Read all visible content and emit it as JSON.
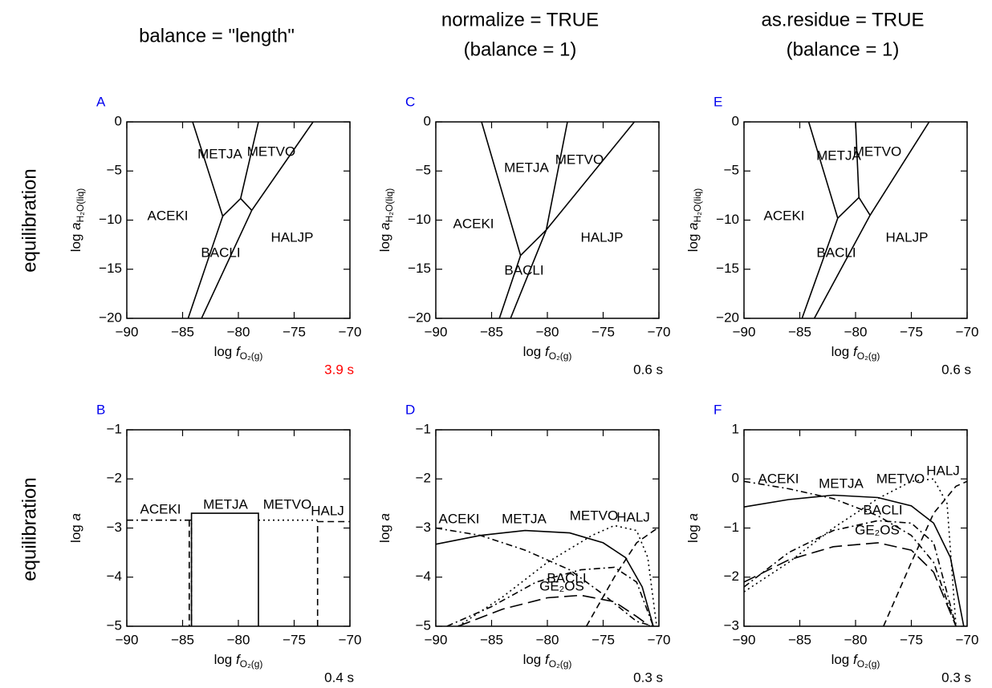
{
  "headers": [
    [
      "balance = \"length\""
    ],
    [
      "normalize = TRUE",
      "(balance = 1)"
    ],
    [
      "as.residue = TRUE",
      "(balance = 1)"
    ]
  ],
  "row_labels": [
    "equilibration",
    "equilibration"
  ],
  "chart_data": [
    {
      "type": "line",
      "letter": "A",
      "time": "3.9 s",
      "time_color": "#ff0000",
      "x_label": [
        "log ",
        "f",
        "O₂(g)"
      ],
      "y_label": [
        "log ",
        "a",
        "H₂O(liq)"
      ],
      "xlim": [
        -90,
        -70
      ],
      "ylim": [
        -20,
        0
      ],
      "xticks": [
        {
          "value": -90,
          "label": "−90"
        },
        {
          "value": -85,
          "label": "−85"
        },
        {
          "value": -80,
          "label": "−80"
        },
        {
          "value": -75,
          "label": "−75"
        },
        {
          "value": -70,
          "label": "−70"
        }
      ],
      "yticks": [
        0,
        {
          "value": -5,
          "label": "−5"
        },
        {
          "value": -10,
          "label": "−10"
        },
        {
          "value": -15,
          "label": "−15"
        },
        {
          "value": -20,
          "label": "−20"
        }
      ],
      "labels": [
        "ACEKI",
        "METJA",
        "METVO",
        "BACLI",
        "HALJP"
      ],
      "lines": [
        {
          "dash": "solid",
          "x": [
            -84.1,
            -81.4
          ],
          "y": [
            0,
            -9.6
          ]
        },
        {
          "dash": "solid",
          "x": [
            -81.4,
            -84.5
          ],
          "y": [
            -9.6,
            -20
          ]
        },
        {
          "dash": "solid",
          "x": [
            -81.4,
            -79.8
          ],
          "y": [
            -9.6,
            -7.8
          ]
        },
        {
          "dash": "solid",
          "x": [
            -78.2,
            -79.8
          ],
          "y": [
            0,
            -7.8
          ]
        },
        {
          "dash": "solid",
          "x": [
            -79.8,
            -78.8
          ],
          "y": [
            -7.8,
            -9.0
          ]
        },
        {
          "dash": "solid",
          "x": [
            -73.3,
            -78.8
          ],
          "y": [
            0,
            -9.0
          ]
        },
        {
          "dash": "solid",
          "x": [
            -78.8,
            -83.3
          ],
          "y": [
            -9.0,
            -20
          ]
        }
      ]
    },
    {
      "type": "line",
      "letter": "B",
      "time": "0.4 s",
      "time_color": "#000000",
      "x_label": [
        "log ",
        "f",
        "O₂(g)"
      ],
      "y_label": [
        "log ",
        "a"
      ],
      "xlim": [
        -90,
        -70
      ],
      "ylim": [
        -5,
        -1
      ],
      "xticks": [
        {
          "value": -90,
          "label": "−90"
        },
        {
          "value": -85,
          "label": "−85"
        },
        {
          "value": -80,
          "label": "−80"
        },
        {
          "value": -75,
          "label": "−75"
        },
        {
          "value": -70,
          "label": "−70"
        }
      ],
      "yticks": [
        {
          "value": -1,
          "label": "−1"
        },
        {
          "value": -2,
          "label": "−2"
        },
        {
          "value": -3,
          "label": "−3"
        },
        {
          "value": -4,
          "label": "−4"
        },
        {
          "value": -5,
          "label": "−5"
        }
      ],
      "labels": [
        "ACEKI",
        "METJA",
        "METVO",
        "HALJ"
      ],
      "lines": [
        {
          "dash": "dashdot",
          "x": [
            -90,
            -84.2,
            -84.2
          ],
          "y": [
            -2.84,
            -2.84,
            -5
          ]
        },
        {
          "dash": "solid",
          "x": [
            -84.2,
            -84.2,
            -78.2,
            -78.2
          ],
          "y": [
            -5,
            -2.7,
            -2.7,
            -5
          ]
        },
        {
          "dash": "dotted",
          "x": [
            -78.2,
            -72.9
          ],
          "y": [
            -2.84,
            -2.84
          ]
        },
        {
          "dash": "dashed",
          "x": [
            -72.9,
            -72.9,
            -70
          ],
          "y": [
            -5,
            -2.87,
            -2.87
          ]
        },
        {
          "dash": "dashed",
          "x": [
            -84.4,
            -84.4
          ],
          "y": [
            -2.84,
            -5
          ]
        }
      ]
    },
    {
      "type": "line",
      "letter": "C",
      "time": "0.6 s",
      "time_color": "#000000",
      "x_label": [
        "log ",
        "f",
        "O₂(g)"
      ],
      "y_label": [
        "log ",
        "a",
        "H₂O(liq)"
      ],
      "xlim": [
        -90,
        -70
      ],
      "ylim": [
        -20,
        0
      ],
      "xticks": [
        {
          "value": -90,
          "label": "−90"
        },
        {
          "value": -85,
          "label": "−85"
        },
        {
          "value": -80,
          "label": "−80"
        },
        {
          "value": -75,
          "label": "−75"
        },
        {
          "value": -70,
          "label": "−70"
        }
      ],
      "yticks": [
        0,
        {
          "value": -5,
          "label": "−5"
        },
        {
          "value": -10,
          "label": "−10"
        },
        {
          "value": -15,
          "label": "−15"
        },
        {
          "value": -20,
          "label": "−20"
        }
      ],
      "labels": [
        "ACEKI",
        "METJA",
        "METVO",
        "BACLI",
        "HALJP"
      ],
      "lines": [
        {
          "dash": "solid",
          "x": [
            -85.9,
            -82.4
          ],
          "y": [
            0,
            -13.6
          ]
        },
        {
          "dash": "solid",
          "x": [
            -82.4,
            -84.3
          ],
          "y": [
            -13.6,
            -20
          ]
        },
        {
          "dash": "solid",
          "x": [
            -82.4,
            -80.1
          ],
          "y": [
            -13.6,
            -11.0
          ]
        },
        {
          "dash": "solid",
          "x": [
            -78.2,
            -80.1
          ],
          "y": [
            0,
            -11.0
          ]
        },
        {
          "dash": "solid",
          "x": [
            -72.2,
            -80.1
          ],
          "y": [
            0,
            -11.0
          ]
        },
        {
          "dash": "solid",
          "x": [
            -80.1,
            -83.3
          ],
          "y": [
            -11.0,
            -20
          ]
        }
      ]
    },
    {
      "type": "line",
      "letter": "D",
      "time": "0.3 s",
      "time_color": "#000000",
      "x_label": [
        "log ",
        "f",
        "O₂(g)"
      ],
      "y_label": [
        "log ",
        "a"
      ],
      "xlim": [
        -90,
        -70
      ],
      "ylim": [
        -5,
        -1
      ],
      "xticks": [
        {
          "value": -90,
          "label": "−90"
        },
        {
          "value": -85,
          "label": "−85"
        },
        {
          "value": -80,
          "label": "−80"
        },
        {
          "value": -75,
          "label": "−75"
        },
        {
          "value": -70,
          "label": "−70"
        }
      ],
      "yticks": [
        {
          "value": -1,
          "label": "−1"
        },
        {
          "value": -2,
          "label": "−2"
        },
        {
          "value": -3,
          "label": "−3"
        },
        {
          "value": -4,
          "label": "−4"
        },
        {
          "value": -5,
          "label": "−5"
        }
      ],
      "labels": [
        "ACEKI",
        "METJA",
        "METVO",
        "HALJ",
        "BACLI",
        "GE₂OS"
      ],
      "lines": [
        {
          "dash": "dashdot",
          "x": [
            -90,
            -86,
            -82,
            -78,
            -75,
            -72,
            -70.5
          ],
          "y": [
            -3.0,
            -3.15,
            -3.45,
            -3.85,
            -4.35,
            -4.9,
            -5
          ]
        },
        {
          "dash": "solid",
          "x": [
            -90,
            -86,
            -82,
            -78,
            -75,
            -73,
            -71.5,
            -70.5
          ],
          "y": [
            -3.33,
            -3.15,
            -3.05,
            -3.1,
            -3.3,
            -3.6,
            -4.2,
            -5
          ]
        },
        {
          "dash": "dotted",
          "x": [
            -88,
            -84,
            -80,
            -76,
            -74,
            -72,
            -71,
            -70.2
          ],
          "y": [
            -5,
            -4.4,
            -3.7,
            -3.15,
            -2.95,
            -3.05,
            -3.6,
            -5
          ]
        },
        {
          "dash": "dashed",
          "x": [
            -76.5,
            -74,
            -72,
            -70
          ],
          "y": [
            -5,
            -4,
            -3.3,
            -2.98
          ]
        },
        {
          "dash": "dashdot",
          "x": [
            -89,
            -85,
            -81,
            -77,
            -74,
            -72,
            -70.5
          ],
          "y": [
            -5,
            -4.6,
            -4.1,
            -3.85,
            -3.8,
            -4.1,
            -5
          ]
        },
        {
          "dash": "longdash",
          "x": [
            -88,
            -84,
            -80,
            -77,
            -74,
            -72,
            -70.8
          ],
          "y": [
            -5,
            -4.65,
            -4.42,
            -4.37,
            -4.5,
            -4.8,
            -5
          ]
        }
      ]
    },
    {
      "type": "line",
      "letter": "E",
      "time": "0.6 s",
      "time_color": "#000000",
      "x_label": [
        "log ",
        "f",
        "O₂(g)"
      ],
      "y_label": [
        "log ",
        "a",
        "H₂O(liq)"
      ],
      "xlim": [
        -90,
        -70
      ],
      "ylim": [
        -20,
        0
      ],
      "xticks": [
        {
          "value": -90,
          "label": "−90"
        },
        {
          "value": -85,
          "label": "−85"
        },
        {
          "value": -80,
          "label": "−80"
        },
        {
          "value": -75,
          "label": "−75"
        },
        {
          "value": -70,
          "label": "−70"
        }
      ],
      "yticks": [
        0,
        {
          "value": -5,
          "label": "−5"
        },
        {
          "value": -10,
          "label": "−10"
        },
        {
          "value": -15,
          "label": "−15"
        },
        {
          "value": -20,
          "label": "−20"
        }
      ],
      "labels": [
        "ACEKI",
        "METJA",
        "METVO",
        "BACLI",
        "HALJP"
      ],
      "lines": [
        {
          "dash": "solid",
          "x": [
            -84.2,
            -81.6
          ],
          "y": [
            0,
            -9.8
          ]
        },
        {
          "dash": "solid",
          "x": [
            -81.6,
            -84.8
          ],
          "y": [
            -9.8,
            -20
          ]
        },
        {
          "dash": "solid",
          "x": [
            -81.6,
            -79.7
          ],
          "y": [
            -9.8,
            -7.7
          ]
        },
        {
          "dash": "solid",
          "x": [
            -80.0,
            -79.7
          ],
          "y": [
            0,
            -7.7
          ]
        },
        {
          "dash": "solid",
          "x": [
            -79.7,
            -78.7
          ],
          "y": [
            -7.7,
            -9.5
          ]
        },
        {
          "dash": "solid",
          "x": [
            -73.4,
            -78.7
          ],
          "y": [
            0,
            -9.5
          ]
        },
        {
          "dash": "solid",
          "x": [
            -78.7,
            -83.7
          ],
          "y": [
            -9.5,
            -20
          ]
        }
      ]
    },
    {
      "type": "line",
      "letter": "F",
      "time": "0.3 s",
      "time_color": "#000000",
      "x_label": [
        "log ",
        "f",
        "O₂(g)"
      ],
      "y_label": [
        "log ",
        "a"
      ],
      "xlim": [
        -90,
        -70
      ],
      "ylim": [
        -3,
        1
      ],
      "xticks": [
        {
          "value": -90,
          "label": "−90"
        },
        {
          "value": -85,
          "label": "−85"
        },
        {
          "value": -80,
          "label": "−80"
        },
        {
          "value": -75,
          "label": "−75"
        },
        {
          "value": -70,
          "label": "−70"
        }
      ],
      "yticks": [
        1,
        0,
        {
          "value": -1,
          "label": "−1"
        },
        {
          "value": -2,
          "label": "−2"
        },
        {
          "value": -3,
          "label": "−3"
        }
      ],
      "labels": [
        "ACEKI",
        "METJA",
        "METVO",
        "HALJ",
        "BACLI",
        "GE₂OS"
      ],
      "lines": [
        {
          "dash": "dashdot",
          "x": [
            -90,
            -86,
            -82,
            -78,
            -75,
            -73,
            -71
          ],
          "y": [
            -0.05,
            -0.2,
            -0.4,
            -0.75,
            -1.15,
            -1.7,
            -3
          ]
        },
        {
          "dash": "solid",
          "x": [
            -90,
            -86,
            -82,
            -78,
            -75,
            -73,
            -71.5,
            -70.3
          ],
          "y": [
            -0.57,
            -0.42,
            -0.33,
            -0.38,
            -0.55,
            -0.9,
            -1.6,
            -3
          ]
        },
        {
          "dash": "dotted",
          "x": [
            -90,
            -86,
            -82,
            -78,
            -75,
            -73,
            -71.8,
            -71
          ],
          "y": [
            -2.3,
            -1.7,
            -1.0,
            -0.4,
            -0.05,
            0.0,
            -0.5,
            -3
          ]
        },
        {
          "dash": "dashed",
          "x": [
            -77.5,
            -75,
            -73,
            -71,
            -70
          ],
          "y": [
            -3,
            -1.7,
            -0.7,
            -0.15,
            -0.05
          ]
        },
        {
          "dash": "dashdot",
          "x": [
            -90,
            -86,
            -82,
            -78,
            -75,
            -73,
            -71
          ],
          "y": [
            -2.2,
            -1.5,
            -1.05,
            -0.85,
            -0.9,
            -1.3,
            -3
          ]
        },
        {
          "dash": "longdash",
          "x": [
            -90,
            -86,
            -82,
            -78,
            -75,
            -73,
            -71
          ],
          "y": [
            -2.1,
            -1.65,
            -1.38,
            -1.3,
            -1.45,
            -1.9,
            -3
          ]
        }
      ]
    }
  ]
}
